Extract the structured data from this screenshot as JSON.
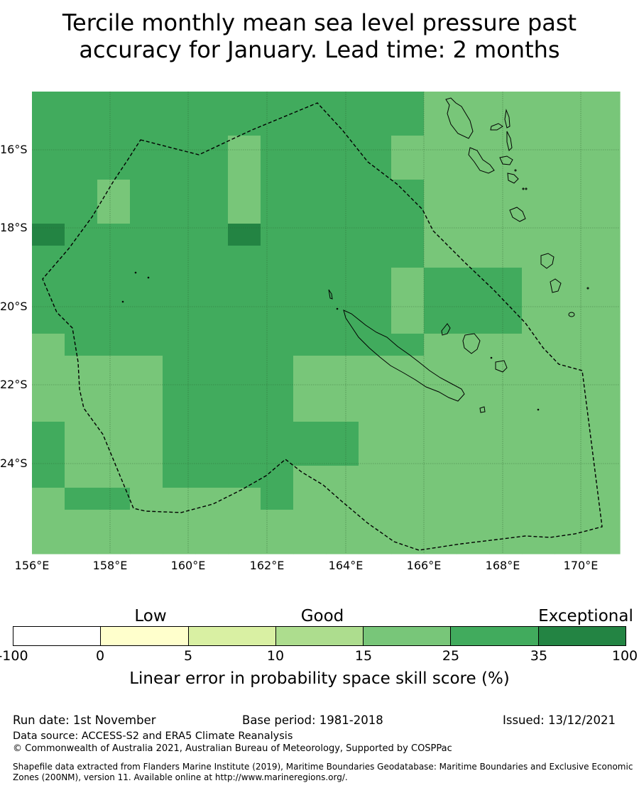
{
  "title_lines": [
    "Tercile monthly mean sea level pressure past",
    "accuracy for January. Lead time: 2 months"
  ],
  "map": {
    "lat_ticks": [
      "16°S",
      "18°S",
      "20°S",
      "22°S",
      "24°S"
    ],
    "lon_ticks": [
      "156°E",
      "158°E",
      "160°E",
      "162°E",
      "164°E",
      "166°E",
      "168°E",
      "170°E"
    ],
    "grid_cols": 18,
    "grid_rows": 21,
    "grid_category": [
      "555555555555444444",
      "555555555555444444",
      "555555455554444444",
      "555555455554444444",
      "554555455555444444",
      "554555455555444444",
      "655555655555444444",
      "555555555555444444",
      "555555555554555444",
      "555555555554555444",
      "555555555554555444",
      "455555555555444444",
      "444455554444444444",
      "444455554444444444",
      "444455554444444444",
      "544455555544444444",
      "544455555544444444",
      "544455554444444444",
      "455444454444444444",
      "444444444444444444",
      "444444444444444444"
    ],
    "grid_category_note": "",
    "colors": [
      "#ffffff",
      "#ffffcc",
      "#d9f0a3",
      "#addd8e",
      "#78c679",
      "#41ab5d",
      "#238443"
    ]
  },
  "colorbar": {
    "categories": [
      "Low",
      "Good",
      "Exceptional"
    ],
    "ticks": [
      "-100",
      "0",
      "5",
      "10",
      "15",
      "25",
      "35",
      "100"
    ],
    "label": "Linear error in probability space skill score (%)"
  },
  "footer": {
    "run_date": "Run date: 1st November",
    "base_period": "Base period: 1981-2018",
    "issued": "Issued: 13/12/2021",
    "data_source": "Data source: ACCESS-S2 and ERA5 Climate Reanalysis",
    "copyright": "© Commonwealth of Australia 2021, Australian Bureau of Meteorology, Supported by COSPPac",
    "shapefile": "Shapefile data extracted from Flanders Marine Institute (2019), Maritime Boundaries Geodatabase: Maritime Boundaries and Exclusive Economic Zones (200NM), version 11. Available online at http://www.marineregions.org/."
  }
}
